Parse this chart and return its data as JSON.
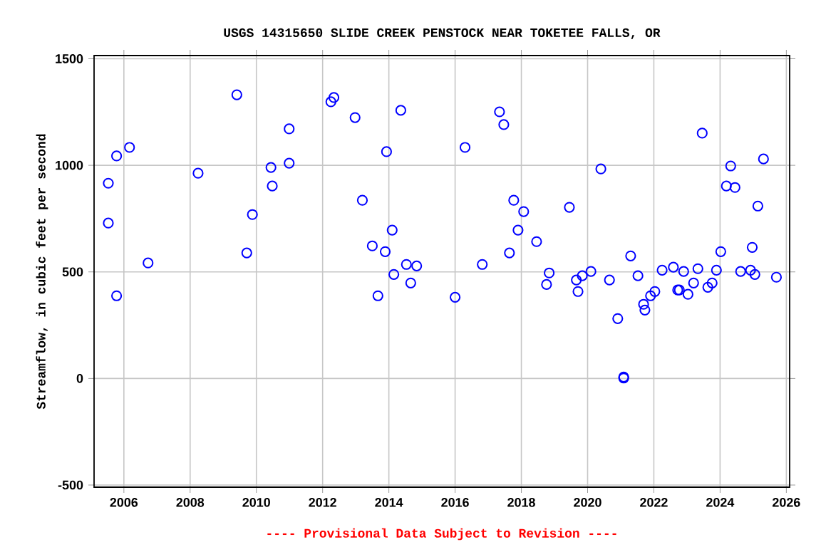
{
  "chart_data": {
    "type": "scatter",
    "title": "USGS 14315650 SLIDE CREEK PENSTOCK NEAR TOKETEE FALLS, OR",
    "ylabel": "Streamflow, in cubic feet per second",
    "annotations": [
      "---- Provisional Data Subject to Revision ----"
    ],
    "x": [
      2005.53,
      2005.53,
      2005.78,
      2005.78,
      2006.17,
      2006.73,
      2008.24,
      2009.41,
      2009.71,
      2009.88,
      2010.44,
      2010.48,
      2010.99,
      2010.99,
      2012.25,
      2012.34,
      2012.98,
      2013.2,
      2013.5,
      2013.67,
      2013.89,
      2013.93,
      2014.1,
      2014.15,
      2014.36,
      2014.53,
      2014.66,
      2014.84,
      2016.0,
      2016.3,
      2016.82,
      2017.34,
      2017.47,
      2017.64,
      2017.77,
      2017.9,
      2018.07,
      2018.46,
      2018.76,
      2018.84,
      2019.45,
      2019.66,
      2019.71,
      2019.84,
      2020.1,
      2020.4,
      2020.66,
      2020.91,
      2021.09,
      2021.09,
      2021.3,
      2021.52,
      2021.69,
      2021.73,
      2021.9,
      2022.03,
      2022.25,
      2022.59,
      2022.72,
      2022.77,
      2022.9,
      2023.03,
      2023.2,
      2023.33,
      2023.46,
      2023.63,
      2023.76,
      2023.89,
      2024.02,
      2024.19,
      2024.32,
      2024.45,
      2024.62,
      2024.92,
      2024.97,
      2025.05,
      2025.14,
      2025.31,
      2025.7
    ],
    "values": [
      916,
      729,
      1044,
      388,
      1084,
      542,
      963,
      1331,
      589,
      769,
      990,
      903,
      1171,
      1010,
      1298,
      1318,
      1224,
      836,
      622,
      388,
      595,
      1064,
      696,
      488,
      1258,
      535,
      448,
      528,
      381,
      1084,
      535,
      1251,
      1191,
      589,
      836,
      696,
      783,
      642,
      441,
      495,
      803,
      462,
      408,
      482,
      502,
      983,
      462,
      281,
      7,
      2,
      575,
      482,
      348,
      321,
      388,
      408,
      508,
      522,
      415,
      415,
      502,
      395,
      448,
      515,
      1151,
      428,
      448,
      508,
      595,
      903,
      997,
      896,
      502,
      508,
      615,
      488,
      809,
      1030,
      475
    ],
    "color": "#0000ff",
    "marker": "circle",
    "grid": true,
    "xlim": [
      2005.1,
      2026.1
    ],
    "ylim": [
      -510,
      1515
    ],
    "xticks": [
      2006,
      2008,
      2010,
      2012,
      2014,
      2016,
      2018,
      2020,
      2022,
      2024,
      2026
    ],
    "yticks": [
      -500,
      0,
      500,
      1000,
      1500
    ]
  }
}
